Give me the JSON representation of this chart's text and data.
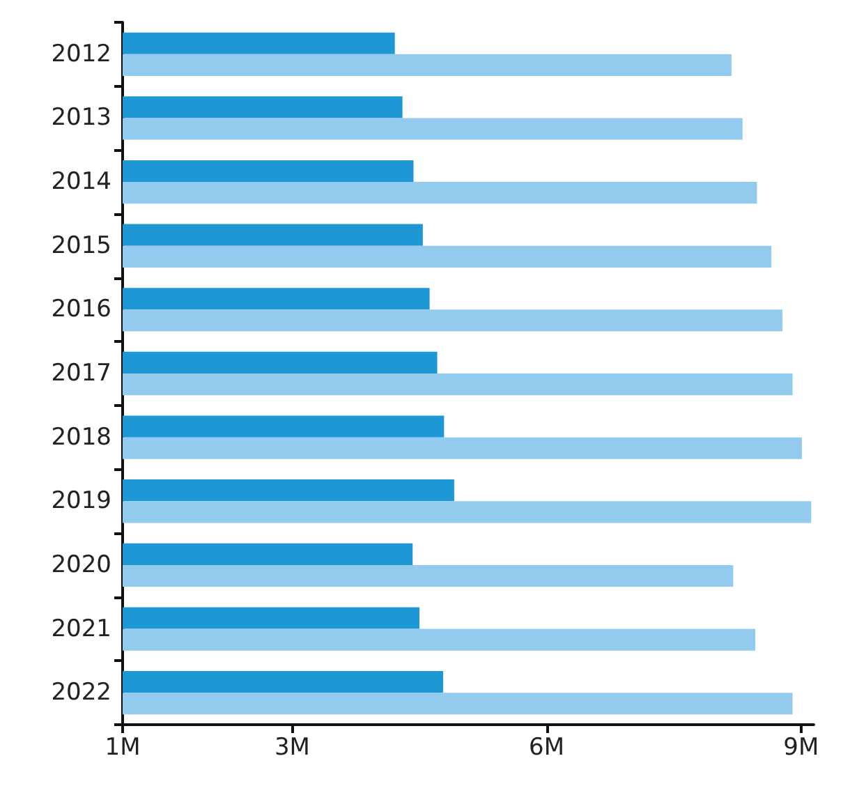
{
  "chart_data": {
    "type": "bar",
    "orientation": "horizontal",
    "categories": [
      "2012",
      "2013",
      "2014",
      "2015",
      "2016",
      "2017",
      "2018",
      "2019",
      "2020",
      "2021",
      "2022"
    ],
    "series": [
      {
        "color": "#1e98d4",
        "values": [
          4.21,
          4.3,
          4.43,
          4.54,
          4.62,
          4.71,
          4.79,
          4.91,
          4.42,
          4.5,
          4.78
        ]
      },
      {
        "color": "#92cbee",
        "values": [
          8.18,
          8.31,
          8.48,
          8.65,
          8.78,
          8.9,
          9.01,
          9.12,
          8.2,
          8.46,
          8.9
        ]
      }
    ],
    "xlim": [
      1,
      9.15
    ],
    "xticks": [
      {
        "value": 1,
        "label": "1M"
      },
      {
        "value": 3,
        "label": "3M"
      },
      {
        "value": 6,
        "label": "6M"
      },
      {
        "value": 9,
        "label": "9M"
      }
    ],
    "tick_labels": true
  }
}
